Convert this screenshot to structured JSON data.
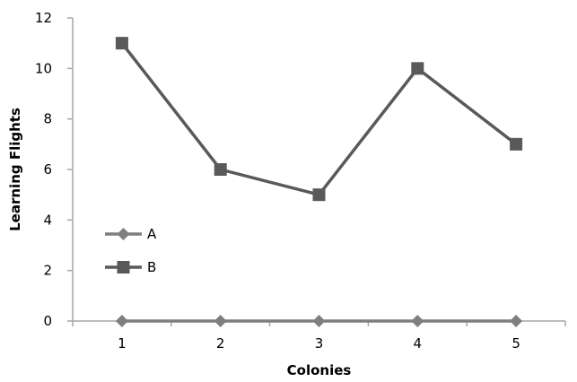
{
  "chart_data": {
    "type": "line",
    "title": "",
    "xlabel": "Colonies",
    "ylabel": "Learning Flights",
    "categories": [
      "1",
      "2",
      "3",
      "4",
      "5"
    ],
    "y_ticks": [
      "0",
      "2",
      "4",
      "6",
      "8",
      "10",
      "12"
    ],
    "ylim": [
      0,
      12
    ],
    "grid": false,
    "legend_position": "left",
    "series": [
      {
        "name": "A",
        "values": [
          0,
          0,
          0,
          0,
          0
        ],
        "marker": "diamond",
        "color": "#7f7f7f"
      },
      {
        "name": "B",
        "values": [
          11,
          6,
          5,
          10,
          7
        ],
        "marker": "square",
        "color": "#595959"
      }
    ]
  }
}
